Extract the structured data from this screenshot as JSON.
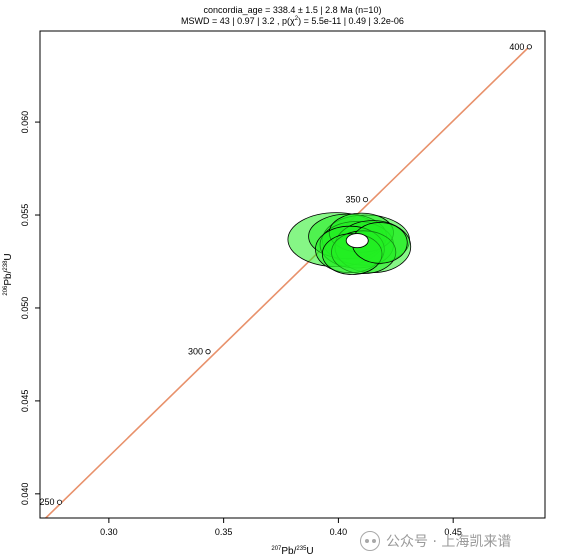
{
  "chart_data": {
    "type": "scatter",
    "title_line1": "concordia_age = 338.4 ± 1.5 | 2.8 Ma (n=10)",
    "title_line2_parts": [
      "MSWD = 43 | 0.97 | 3.2 , p(χ",
      "2",
      ") = 5.5e-11 | 0.49 | 3.2e-06"
    ],
    "xlabel": {
      "sup": "207",
      "main": "Pb/",
      "sup2": "235",
      "end": "U"
    },
    "ylabel": {
      "sup": "206",
      "main": "Pb/",
      "sup2": "238",
      "end": "U"
    },
    "xlim": [
      0.27,
      0.49
    ],
    "ylim": [
      0.0387,
      0.0649
    ],
    "x_ticks": [
      0.3,
      0.35,
      0.4,
      0.45
    ],
    "x_tick_labels": [
      "0.30",
      "0.35",
      "0.40",
      "0.45"
    ],
    "y_ticks": [
      0.04,
      0.045,
      0.05,
      0.055,
      0.06
    ],
    "y_tick_labels": [
      "0.040",
      "0.045",
      "0.050",
      "0.055",
      "0.060"
    ],
    "concordia_color": "#e8916b",
    "concordia_line": {
      "x": [
        0.2725,
        0.4835
      ],
      "y": [
        0.0387,
        0.0641
      ]
    },
    "age_markers": [
      {
        "label": "250",
        "x": 0.2785,
        "y": 0.03955
      },
      {
        "label": "300",
        "x": 0.3432,
        "y": 0.04765
      },
      {
        "label": "350",
        "x": 0.4118,
        "y": 0.05583
      },
      {
        "label": "400",
        "x": 0.4832,
        "y": 0.06405
      }
    ],
    "ellipse_fill": "#22ee22",
    "ellipse_stroke": "#000000",
    "ellipses": [
      {
        "x": 0.399,
        "y": 0.05368,
        "rx": 0.021,
        "ry": 0.00145
      },
      {
        "x": 0.412,
        "y": 0.05365,
        "rx": 0.019,
        "ry": 0.00135
      },
      {
        "x": 0.404,
        "y": 0.05385,
        "rx": 0.017,
        "ry": 0.0012
      },
      {
        "x": 0.408,
        "y": 0.0534,
        "rx": 0.016,
        "ry": 0.00125
      },
      {
        "x": 0.41,
        "y": 0.05405,
        "rx": 0.014,
        "ry": 0.00105
      },
      {
        "x": 0.415,
        "y": 0.0533,
        "rx": 0.0165,
        "ry": 0.0014
      },
      {
        "x": 0.405,
        "y": 0.05315,
        "rx": 0.015,
        "ry": 0.00125
      },
      {
        "x": 0.411,
        "y": 0.053,
        "rx": 0.014,
        "ry": 0.00115
      },
      {
        "x": 0.406,
        "y": 0.0529,
        "rx": 0.013,
        "ry": 0.0011
      },
      {
        "x": 0.418,
        "y": 0.0535,
        "rx": 0.012,
        "ry": 0.0011
      }
    ],
    "concordia_age_ellipse": {
      "x": 0.4082,
      "y": 0.05362,
      "rx": 0.0048,
      "ry": 0.00038,
      "fill": "#ffffff"
    },
    "grid": false,
    "legend": "none"
  },
  "watermark": {
    "text": "公众号 · 上海凯来谱"
  }
}
